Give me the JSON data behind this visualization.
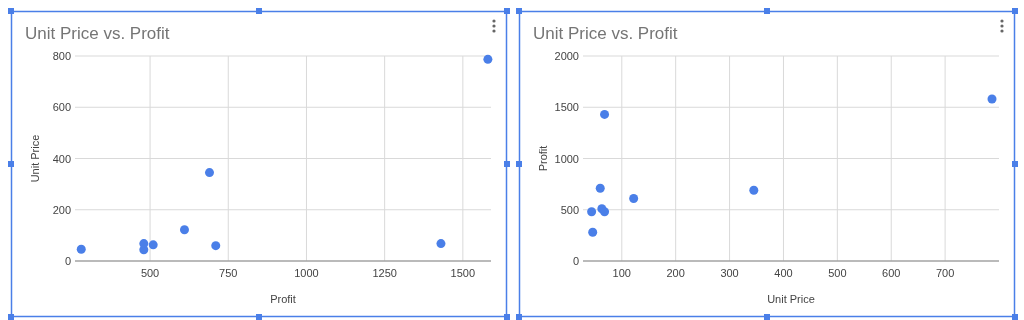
{
  "chart_data": [
    {
      "type": "scatter",
      "title": "Unit Price vs. Profit",
      "xlabel": "Profit",
      "ylabel": "Unit Price",
      "x": [
        480,
        280,
        710,
        510,
        480,
        1430,
        610,
        690,
        1580
      ],
      "values": [
        44,
        46,
        60,
        63,
        68,
        68,
        122,
        345,
        787
      ],
      "color": "#4a7fe8",
      "xlim": [
        260,
        1590
      ],
      "xticks": [
        500,
        750,
        1000,
        1250,
        1500
      ],
      "ylim": [
        0,
        800
      ],
      "yticks": [
        0,
        200,
        400,
        600,
        800
      ],
      "grid": true,
      "marker": "circle"
    },
    {
      "type": "scatter",
      "title": "Unit Price vs. Profit",
      "xlabel": "Unit Price",
      "ylabel": "Profit",
      "x": [
        44,
        46,
        60,
        63,
        68,
        68,
        122,
        345,
        787
      ],
      "values": [
        480,
        280,
        710,
        510,
        480,
        1430,
        610,
        690,
        1580
      ],
      "color": "#4a7fe8",
      "xlim": [
        28,
        800
      ],
      "xticks": [
        100,
        200,
        300,
        400,
        500,
        600,
        700
      ],
      "ylim": [
        0,
        2000
      ],
      "yticks": [
        0,
        500,
        1000,
        1500,
        2000
      ],
      "grid": true,
      "marker": "circle"
    }
  ]
}
